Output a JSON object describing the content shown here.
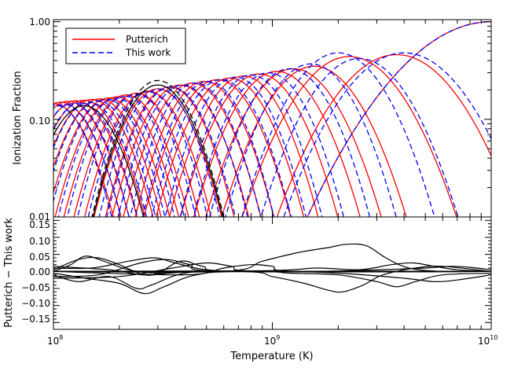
{
  "chart_data": [
    {
      "type": "line",
      "panel": "top",
      "ylabel": "Ionization Fraction",
      "xscale": "log",
      "yscale": "log",
      "xlim": [
        100000000.0,
        10000000000.0
      ],
      "ylim": [
        0.01,
        1.05
      ],
      "yticks": [
        {
          "value": 0.01,
          "label": "0.01"
        },
        {
          "value": 0.1,
          "label": "0.10"
        },
        {
          "value": 1.0,
          "label": "1.00"
        }
      ],
      "legend_position": "top-left",
      "legend": [
        {
          "label": "Putterich",
          "color": "#ff0000",
          "dash": "solid"
        },
        {
          "label": "This work",
          "color": "#0000ff",
          "dash": "dashed"
        }
      ],
      "series": [
        {
          "name": "Putterich",
          "color": "#ff0000",
          "dash": "solid",
          "curves": [
            {
              "peak_T": 100000000.0,
              "peak_y": 0.145,
              "width": 0.18
            },
            {
              "peak_T": 108000000.0,
              "peak_y": 0.15,
              "width": 0.18
            },
            {
              "peak_T": 117000000.0,
              "peak_y": 0.153,
              "width": 0.18
            },
            {
              "peak_T": 127000000.0,
              "peak_y": 0.155,
              "width": 0.18
            },
            {
              "peak_T": 138000000.0,
              "peak_y": 0.157,
              "width": 0.18
            },
            {
              "peak_T": 150000000.0,
              "peak_y": 0.16,
              "width": 0.18
            },
            {
              "peak_T": 163000000.0,
              "peak_y": 0.162,
              "width": 0.18
            },
            {
              "peak_T": 178000000.0,
              "peak_y": 0.165,
              "width": 0.18
            },
            {
              "peak_T": 195000000.0,
              "peak_y": 0.17,
              "width": 0.18
            },
            {
              "peak_T": 215000000.0,
              "peak_y": 0.178,
              "width": 0.18
            },
            {
              "peak_T": 240000000.0,
              "peak_y": 0.185,
              "width": 0.18
            },
            {
              "peak_T": 270000000.0,
              "peak_y": 0.195,
              "width": 0.18
            },
            {
              "peak_T": 300000000.0,
              "peak_y": 0.205,
              "width": 0.18
            },
            {
              "peak_T": 340000000.0,
              "peak_y": 0.215,
              "width": 0.18
            },
            {
              "peak_T": 380000000.0,
              "peak_y": 0.225,
              "width": 0.19
            },
            {
              "peak_T": 430000000.0,
              "peak_y": 0.235,
              "width": 0.19
            },
            {
              "peak_T": 490000000.0,
              "peak_y": 0.245,
              "width": 0.19
            },
            {
              "peak_T": 560000000.0,
              "peak_y": 0.255,
              "width": 0.2
            },
            {
              "peak_T": 640000000.0,
              "peak_y": 0.265,
              "width": 0.2
            },
            {
              "peak_T": 740000000.0,
              "peak_y": 0.278,
              "width": 0.2
            },
            {
              "peak_T": 870000000.0,
              "peak_y": 0.292,
              "width": 0.21
            },
            {
              "peak_T": 1050000000.0,
              "peak_y": 0.31,
              "width": 0.22
            },
            {
              "peak_T": 1250000000.0,
              "peak_y": 0.33,
              "width": 0.23
            },
            {
              "peak_T": 1550000000.0,
              "peak_y": 0.35,
              "width": 0.24
            },
            {
              "peak_T": 2250000000.0,
              "peak_y": 0.44,
              "width": 0.27
            },
            {
              "peak_T": 3700000000.0,
              "peak_y": 0.46,
              "width": 0.3
            },
            {
              "peak_T": 10000000000.0,
              "peak_y": 1.0,
              "width": 0.42
            }
          ]
        },
        {
          "name": "This work",
          "color": "#0000ff",
          "dash": "dashed",
          "curves": [
            {
              "peak_T": 102000000.0,
              "peak_y": 0.14,
              "width": 0.17
            },
            {
              "peak_T": 112000000.0,
              "peak_y": 0.142,
              "width": 0.17
            },
            {
              "peak_T": 122000000.0,
              "peak_y": 0.145,
              "width": 0.17
            },
            {
              "peak_T": 133000000.0,
              "peak_y": 0.148,
              "width": 0.17
            },
            {
              "peak_T": 146000000.0,
              "peak_y": 0.15,
              "width": 0.17
            },
            {
              "peak_T": 160000000.0,
              "peak_y": 0.155,
              "width": 0.17
            },
            {
              "peak_T": 176000000.0,
              "peak_y": 0.16,
              "width": 0.17
            },
            {
              "peak_T": 194000000.0,
              "peak_y": 0.165,
              "width": 0.17
            },
            {
              "peak_T": 214000000.0,
              "peak_y": 0.172,
              "width": 0.17
            },
            {
              "peak_T": 240000000.0,
              "peak_y": 0.182,
              "width": 0.17
            },
            {
              "peak_T": 270000000.0,
              "peak_y": 0.192,
              "width": 0.17
            },
            {
              "peak_T": 305000000.0,
              "peak_y": 0.205,
              "width": 0.17
            },
            {
              "peak_T": 345000000.0,
              "peak_y": 0.215,
              "width": 0.18
            },
            {
              "peak_T": 390000000.0,
              "peak_y": 0.225,
              "width": 0.18
            },
            {
              "peak_T": 445000000.0,
              "peak_y": 0.235,
              "width": 0.18
            },
            {
              "peak_T": 510000000.0,
              "peak_y": 0.245,
              "width": 0.18
            },
            {
              "peak_T": 585000000.0,
              "peak_y": 0.255,
              "width": 0.19
            },
            {
              "peak_T": 680000000.0,
              "peak_y": 0.27,
              "width": 0.19
            },
            {
              "peak_T": 800000000.0,
              "peak_y": 0.285,
              "width": 0.19
            },
            {
              "peak_T": 960000000.0,
              "peak_y": 0.3,
              "width": 0.2
            },
            {
              "peak_T": 1200000000.0,
              "peak_y": 0.33,
              "width": 0.21
            },
            {
              "peak_T": 1500000000.0,
              "peak_y": 0.37,
              "width": 0.22
            },
            {
              "peak_T": 2000000000.0,
              "peak_y": 0.48,
              "width": 0.24
            },
            {
              "peak_T": 2500000000.0,
              "peak_y": 0.42,
              "width": 0.25
            },
            {
              "peak_T": 4000000000.0,
              "peak_y": 0.48,
              "width": 0.3
            },
            {
              "peak_T": 10000000000.0,
              "peak_y": 1.0,
              "width": 0.42
            }
          ]
        },
        {
          "name": "",
          "color": "#000000",
          "dash": "solid",
          "curves": [
            {
              "peak_T": 138000000.0,
              "peak_y": 0.138,
              "width": 0.18
            },
            {
              "peak_T": 300000000.0,
              "peak_y": 0.225,
              "width": 0.18
            }
          ]
        },
        {
          "name": "",
          "color": "#000000",
          "dash": "dashed",
          "curves": [
            {
              "peak_T": 300000000.0,
              "peak_y": 0.25,
              "width": 0.18
            }
          ]
        }
      ]
    },
    {
      "type": "line",
      "panel": "bottom",
      "xlabel": "Temperature (K)",
      "ylabel": "Putterich − This work",
      "xscale": "log",
      "xlim": [
        100000000.0,
        10000000000.0
      ],
      "ylim": [
        -0.17,
        0.16
      ],
      "yticks": [
        {
          "value": 0.15,
          "label": "0.15"
        },
        {
          "value": 0.1,
          "label": "0.10"
        },
        {
          "value": 0.05,
          "label": "0.05"
        },
        {
          "value": 0.0,
          "label": "0.00"
        },
        {
          "value": -0.05,
          "label": "−0.05"
        },
        {
          "value": -0.1,
          "label": "−0.10"
        },
        {
          "value": -0.15,
          "label": "−0.15"
        }
      ],
      "xticks": [
        {
          "value": 100000000.0,
          "base": "10",
          "exp": "8"
        },
        {
          "value": 1000000000.0,
          "base": "10",
          "exp": "9"
        },
        {
          "value": 10000000000.0,
          "base": "10",
          "exp": "10"
        }
      ],
      "series_color": "#000000",
      "series": [
        {
          "name": "",
          "points": [
            [
              100000000.0,
              0.0
            ],
            [
              120000000.0,
              0.02
            ],
            [
              140000000.0,
              0.045
            ],
            [
              170000000.0,
              0.03
            ],
            [
              220000000.0,
              0.005
            ],
            [
              300000000.0,
              -0.005
            ],
            [
              500000000.0,
              0.0
            ],
            [
              10000000000.0,
              0.0
            ]
          ]
        },
        {
          "name": "",
          "points": [
            [
              100000000.0,
              0.005
            ],
            [
              130000000.0,
              0.035
            ],
            [
              160000000.0,
              0.04
            ],
            [
              200000000.0,
              0.02
            ],
            [
              260000000.0,
              -0.01
            ],
            [
              340000000.0,
              -0.005
            ],
            [
              600000000.0,
              0.0
            ],
            [
              10000000000.0,
              0.0
            ]
          ]
        },
        {
          "name": "",
          "points": [
            [
              100000000.0,
              -0.01
            ],
            [
              130000000.0,
              -0.03
            ],
            [
              180000000.0,
              -0.015
            ],
            [
              240000000.0,
              -0.05
            ],
            [
              280000000.0,
              -0.04
            ],
            [
              400000000.0,
              -0.005
            ],
            [
              700000000.0,
              0.0
            ],
            [
              10000000000.0,
              0.0
            ]
          ]
        },
        {
          "name": "",
          "points": [
            [
              100000000.0,
              -0.005
            ],
            [
              140000000.0,
              -0.02
            ],
            [
              200000000.0,
              -0.035
            ],
            [
              260000000.0,
              -0.065
            ],
            [
              320000000.0,
              -0.045
            ],
            [
              450000000.0,
              -0.01
            ],
            [
              800000000.0,
              0.0
            ],
            [
              10000000000.0,
              0.0
            ]
          ]
        },
        {
          "name": "",
          "points": [
            [
              100000000.0,
              0.01
            ],
            [
              150000000.0,
              0.01
            ],
            [
              220000000.0,
              0.03
            ],
            [
              290000000.0,
              0.04
            ],
            [
              360000000.0,
              0.025
            ],
            [
              500000000.0,
              0.005
            ],
            [
              900000000.0,
              0.0
            ],
            [
              10000000000.0,
              0.0
            ]
          ]
        },
        {
          "name": "",
          "points": [
            [
              100000000.0,
              -0.015
            ],
            [
              160000000.0,
              -0.01
            ],
            [
              250000000.0,
              0.025
            ],
            [
              330000000.0,
              0.035
            ],
            [
              420000000.0,
              0.02
            ],
            [
              600000000.0,
              0.0
            ],
            [
              10000000000.0,
              0.0
            ]
          ]
        },
        {
          "name": "",
          "points": [
            [
              100000000.0,
              0.015
            ],
            [
              180000000.0,
              0.005
            ],
            [
              280000000.0,
              -0.01
            ],
            [
              380000000.0,
              0.03
            ],
            [
              480000000.0,
              0.015
            ],
            [
              700000000.0,
              0.0
            ],
            [
              10000000000.0,
              0.0
            ]
          ]
        },
        {
          "name": "",
          "points": [
            [
              100000000.0,
              -0.02
            ],
            [
              200000000.0,
              -0.015
            ],
            [
              350000000.0,
              0.01
            ],
            [
              500000000.0,
              0.025
            ],
            [
              650000000.0,
              0.015
            ],
            [
              900000000.0,
              0.0
            ],
            [
              10000000000.0,
              0.0
            ]
          ]
        },
        {
          "name": "",
          "points": [
            [
              100000000.0,
              0.0
            ],
            [
              400000000.0,
              -0.01
            ],
            [
              600000000.0,
              0.01
            ],
            [
              800000000.0,
              0.02
            ],
            [
              1000000000.0,
              0.015
            ],
            [
              1300000000.0,
              0.0
            ],
            [
              10000000000.0,
              0.0
            ]
          ]
        },
        {
          "name": "",
          "points": [
            [
              100000000.0,
              0.0
            ],
            [
              600000000.0,
              0.0
            ],
            [
              900000000.0,
              0.03
            ],
            [
              1300000000.0,
              0.055
            ],
            [
              1800000000.0,
              0.07
            ],
            [
              2200000000.0,
              0.08
            ],
            [
              2700000000.0,
              0.075
            ],
            [
              3300000000.0,
              0.04
            ],
            [
              4200000000.0,
              0.01
            ],
            [
              6000000000.0,
              0.0
            ],
            [
              10000000000.0,
              0.0
            ]
          ]
        },
        {
          "name": "",
          "points": [
            [
              100000000.0,
              0.0
            ],
            [
              700000000.0,
              0.0
            ],
            [
              1000000000.0,
              -0.015
            ],
            [
              1400000000.0,
              -0.035
            ],
            [
              1800000000.0,
              -0.055
            ],
            [
              2100000000.0,
              -0.06
            ],
            [
              2600000000.0,
              -0.04
            ],
            [
              3200000000.0,
              -0.01
            ],
            [
              4500000000.0,
              0.01
            ],
            [
              6000000000.0,
              0.015
            ],
            [
              10000000000.0,
              0.0
            ]
          ]
        },
        {
          "name": "",
          "points": [
            [
              100000000.0,
              0.0
            ],
            [
              800000000.0,
              0.0
            ],
            [
              1200000000.0,
              -0.005
            ],
            [
              2000000000.0,
              -0.01
            ],
            [
              3000000000.0,
              -0.03
            ],
            [
              3700000000.0,
              -0.045
            ],
            [
              4500000000.0,
              -0.03
            ],
            [
              6000000000.0,
              -0.01
            ],
            [
              10000000000.0,
              -0.005
            ]
          ]
        },
        {
          "name": "",
          "points": [
            [
              100000000.0,
              0.0
            ],
            [
              900000000.0,
              0.002
            ],
            [
              1600000000.0,
              0.01
            ],
            [
              2500000000.0,
              0.005
            ],
            [
              3500000000.0,
              0.02
            ],
            [
              4400000000.0,
              0.025
            ],
            [
              5500000000.0,
              0.015
            ],
            [
              7000000000.0,
              0.005
            ],
            [
              10000000000.0,
              0.0
            ]
          ]
        },
        {
          "name": "",
          "points": [
            [
              100000000.0,
              0.0
            ],
            [
              1000000000.0,
              0.0
            ],
            [
              2000000000.0,
              -0.005
            ],
            [
              4000000000.0,
              -0.02
            ],
            [
              5500000000.0,
              -0.03
            ],
            [
              7000000000.0,
              -0.025
            ],
            [
              10000000000.0,
              -0.01
            ]
          ]
        },
        {
          "name": "",
          "points": [
            [
              100000000.0,
              0.0
            ],
            [
              1200000000.0,
              0.0
            ],
            [
              2500000000.0,
              0.003
            ],
            [
              5000000000.0,
              0.01
            ],
            [
              6500000000.0,
              0.015
            ],
            [
              8000000000.0,
              0.012
            ],
            [
              10000000000.0,
              0.005
            ]
          ]
        }
      ]
    }
  ]
}
